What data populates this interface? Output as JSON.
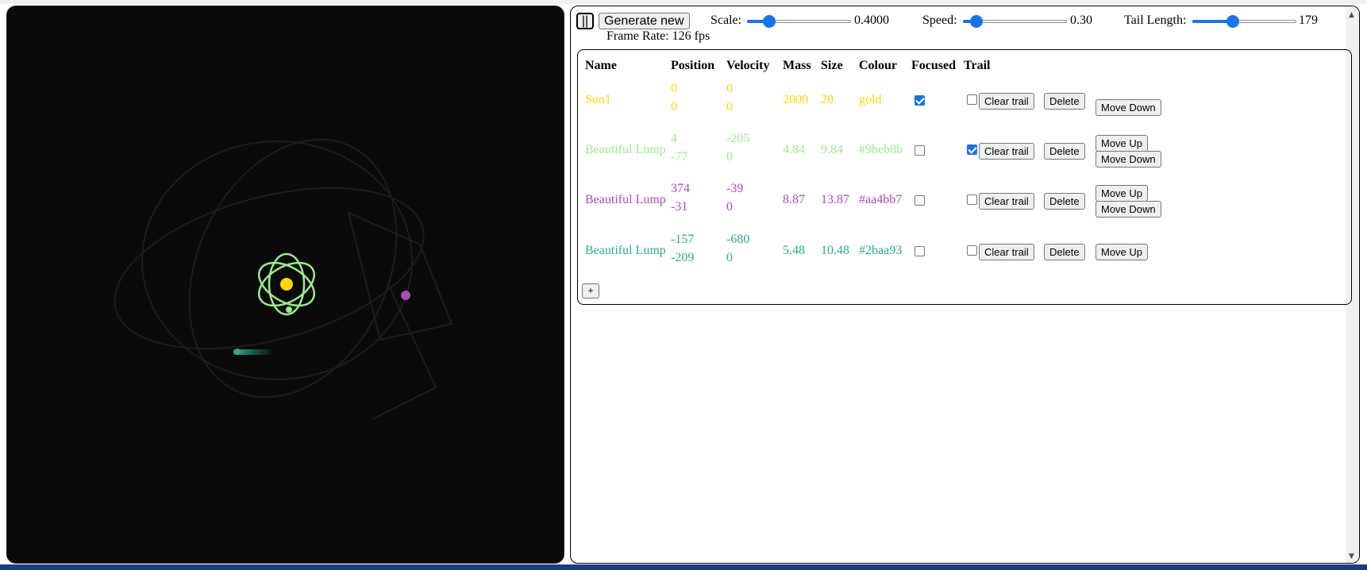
{
  "controls": {
    "pause_label": "||",
    "generate_label": "Generate new",
    "scale_label": "Scale:",
    "scale_value": "0.4000",
    "scale_fraction": 0.17,
    "speed_label": "Speed:",
    "speed_value": "0.30",
    "speed_fraction": 0.08,
    "tail_label": "Tail Length:",
    "tail_value": "179",
    "tail_fraction": 0.37,
    "frame_rate": "Frame Rate: 126 fps"
  },
  "table": {
    "headers": [
      "Name",
      "Position",
      "Velocity",
      "Mass",
      "Size",
      "Colour",
      "Focused",
      "Trail"
    ],
    "clear_trail_label": "Clear trail",
    "delete_label": "Delete",
    "move_up_label": "Move Up",
    "move_down_label": "Move Down",
    "add_label": "+",
    "rows": [
      {
        "name": "Sun1",
        "pos_x": "0",
        "pos_y": "0",
        "vel_x": "0",
        "vel_y": "0",
        "mass": "2000",
        "size": "20",
        "colour": "gold",
        "color_hex": "#ffd700",
        "focused": true,
        "trail": false,
        "move_up": false,
        "move_down": true
      },
      {
        "name": "Beautiful Lump",
        "pos_x": "4",
        "pos_y": "-77",
        "vel_x": "-205",
        "vel_y": "0",
        "mass": "4.84",
        "size": "9.84",
        "colour": "#9beb8b",
        "color_hex": "#9beb8b",
        "focused": false,
        "trail": true,
        "move_up": true,
        "move_down": true
      },
      {
        "name": "Beautiful Lump",
        "pos_x": "374",
        "pos_y": "-31",
        "vel_x": "-39",
        "vel_y": "0",
        "mass": "8.87",
        "size": "13.87",
        "colour": "#aa4bb7",
        "color_hex": "#aa4bb7",
        "focused": false,
        "trail": false,
        "move_up": true,
        "move_down": true
      },
      {
        "name": "Beautiful Lump",
        "pos_x": "-157",
        "pos_y": "-209",
        "vel_x": "-680",
        "vel_y": "0",
        "mass": "5.48",
        "size": "10.48",
        "colour": "#2baa93",
        "color_hex": "#2baa93",
        "focused": false,
        "trail": false,
        "move_up": true,
        "move_down": false
      }
    ]
  },
  "colors": {
    "canvas_bg": "#0a0a0a",
    "accent": "#1a73e8"
  }
}
